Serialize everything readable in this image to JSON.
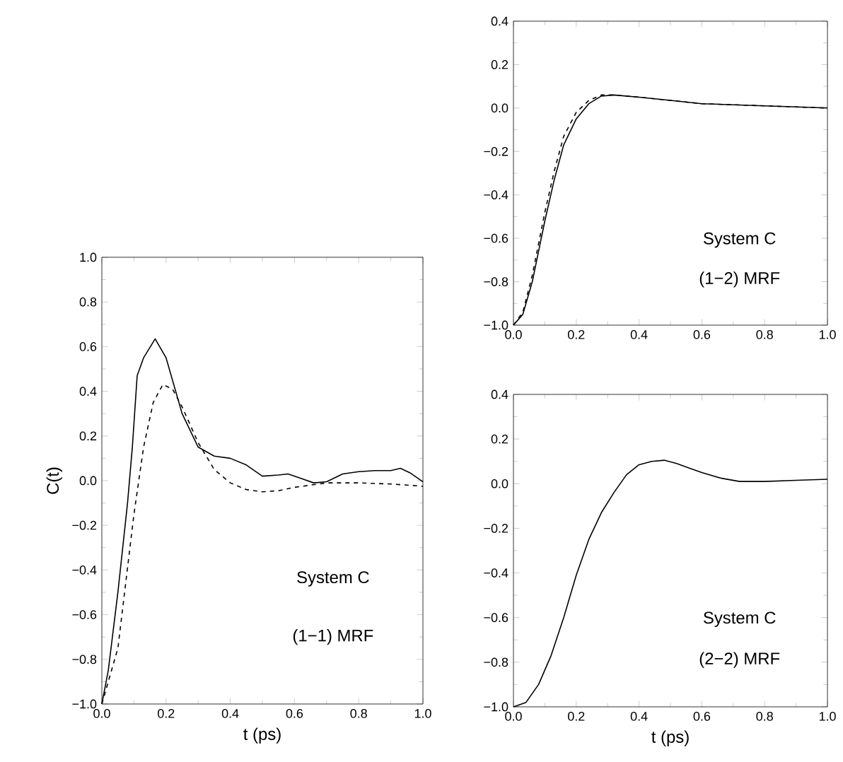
{
  "chart_data": [
    {
      "type": "line",
      "xlabel": "t (ps)",
      "ylabel": "C(t)",
      "annotations": [
        "System C",
        "(1−1)  MRF"
      ],
      "xlim": [
        0,
        1
      ],
      "ylim": [
        -1,
        1
      ],
      "xticks": [
        {
          "value": 0,
          "label": "0.0"
        },
        {
          "value": 0.2,
          "label": "0.2"
        },
        {
          "value": 0.4,
          "label": "0.4"
        },
        {
          "value": 0.6,
          "label": "0.6"
        },
        {
          "value": 0.8,
          "label": "0.8"
        },
        {
          "value": 1,
          "label": "1.0"
        }
      ],
      "yticks": [
        {
          "value": -1,
          "label": "−1.0"
        },
        {
          "value": -0.8,
          "label": "−0.8"
        },
        {
          "value": -0.6,
          "label": "−0.6"
        },
        {
          "value": -0.4,
          "label": "−0.4"
        },
        {
          "value": -0.2,
          "label": "−0.2"
        },
        {
          "value": 0,
          "label": "0.0"
        },
        {
          "value": 0.2,
          "label": "0.2"
        },
        {
          "value": 0.4,
          "label": "0.4"
        },
        {
          "value": 0.6,
          "label": "0.6"
        },
        {
          "value": 0.8,
          "label": "0.8"
        },
        {
          "value": 1,
          "label": "1.0"
        }
      ],
      "series": [
        {
          "color": "#000000",
          "line_style": "solid",
          "x": [
            0,
            0.02,
            0.05,
            0.08,
            0.095,
            0.11,
            0.13,
            0.166,
            0.2,
            0.25,
            0.3,
            0.35,
            0.4,
            0.45,
            0.5,
            0.55,
            0.58,
            0.62,
            0.66,
            0.7,
            0.75,
            0.8,
            0.85,
            0.9,
            0.93,
            0.96,
            1.0
          ],
          "values": [
            -1.0,
            -0.85,
            -0.5,
            -0.1,
            0.15,
            0.47,
            0.55,
            0.635,
            0.55,
            0.3,
            0.15,
            0.11,
            0.1,
            0.07,
            0.02,
            0.025,
            0.03,
            0.01,
            -0.01,
            -0.005,
            0.03,
            0.04,
            0.045,
            0.045,
            0.055,
            0.035,
            -0.005
          ]
        },
        {
          "color": "#000000",
          "line_style": "dashed",
          "x": [
            0,
            0.05,
            0.1,
            0.13,
            0.16,
            0.19,
            0.22,
            0.25,
            0.3,
            0.35,
            0.4,
            0.45,
            0.5,
            0.55,
            0.6,
            0.65,
            0.7,
            0.8,
            0.9,
            1.0
          ],
          "values": [
            -1.0,
            -0.75,
            -0.15,
            0.15,
            0.35,
            0.43,
            0.41,
            0.33,
            0.17,
            0.05,
            -0.01,
            -0.04,
            -0.05,
            -0.045,
            -0.03,
            -0.02,
            -0.01,
            -0.01,
            -0.015,
            -0.025
          ]
        }
      ]
    },
    {
      "type": "line",
      "annotations": [
        "System C",
        "(1−2)  MRF"
      ],
      "xlim": [
        0,
        1
      ],
      "ylim": [
        -1,
        0.4
      ],
      "xticks": [
        {
          "value": 0,
          "label": "0.0"
        },
        {
          "value": 0.2,
          "label": "0.2"
        },
        {
          "value": 0.4,
          "label": "0.4"
        },
        {
          "value": 0.6,
          "label": "0.6"
        },
        {
          "value": 0.8,
          "label": "0.8"
        },
        {
          "value": 1,
          "label": "1.0"
        }
      ],
      "yticks": [
        {
          "value": -1,
          "label": "−1.0"
        },
        {
          "value": -0.8,
          "label": "−0.8"
        },
        {
          "value": -0.6,
          "label": "−0.6"
        },
        {
          "value": -0.4,
          "label": "−0.4"
        },
        {
          "value": -0.2,
          "label": "−0.2"
        },
        {
          "value": 0,
          "label": "0.0"
        },
        {
          "value": 0.2,
          "label": "0.2"
        },
        {
          "value": 0.4,
          "label": "0.4"
        }
      ],
      "series": [
        {
          "color": "#000000",
          "line_style": "solid",
          "x": [
            0,
            0.03,
            0.06,
            0.1,
            0.13,
            0.16,
            0.2,
            0.24,
            0.28,
            0.32,
            0.4,
            0.5,
            0.6,
            0.7,
            0.8,
            0.9,
            1.0
          ],
          "values": [
            -1.0,
            -0.95,
            -0.8,
            -0.52,
            -0.33,
            -0.17,
            -0.05,
            0.02,
            0.055,
            0.06,
            0.05,
            0.035,
            0.02,
            0.015,
            0.01,
            0.005,
            0.0
          ]
        },
        {
          "color": "#000000",
          "line_style": "dashed",
          "x": [
            0,
            0.03,
            0.06,
            0.1,
            0.13,
            0.16,
            0.2,
            0.24,
            0.28,
            0.32,
            0.4,
            0.5,
            0.6,
            0.7,
            0.8,
            0.9,
            1.0
          ],
          "values": [
            -1.0,
            -0.94,
            -0.77,
            -0.48,
            -0.29,
            -0.13,
            -0.02,
            0.035,
            0.06,
            0.06,
            0.05,
            0.035,
            0.02,
            0.015,
            0.01,
            0.005,
            0.0
          ]
        }
      ]
    },
    {
      "type": "line",
      "xlabel": "t (ps)",
      "annotations": [
        "System C",
        "(2−2)  MRF"
      ],
      "xlim": [
        0,
        1
      ],
      "ylim": [
        -1,
        0.4
      ],
      "xticks": [
        {
          "value": 0,
          "label": "0.0"
        },
        {
          "value": 0.2,
          "label": "0.2"
        },
        {
          "value": 0.4,
          "label": "0.4"
        },
        {
          "value": 0.6,
          "label": "0.6"
        },
        {
          "value": 0.8,
          "label": "0.8"
        },
        {
          "value": 1,
          "label": "1.0"
        }
      ],
      "yticks": [
        {
          "value": -1,
          "label": "−1.0"
        },
        {
          "value": -0.8,
          "label": "−0.8"
        },
        {
          "value": -0.6,
          "label": "−0.6"
        },
        {
          "value": -0.4,
          "label": "−0.4"
        },
        {
          "value": -0.2,
          "label": "−0.2"
        },
        {
          "value": 0,
          "label": "0.0"
        },
        {
          "value": 0.2,
          "label": "0.2"
        },
        {
          "value": 0.4,
          "label": "0.4"
        }
      ],
      "series": [
        {
          "color": "#000000",
          "line_style": "solid",
          "x": [
            0,
            0.04,
            0.08,
            0.12,
            0.16,
            0.2,
            0.24,
            0.28,
            0.32,
            0.36,
            0.4,
            0.44,
            0.48,
            0.52,
            0.56,
            0.6,
            0.66,
            0.72,
            0.8,
            0.9,
            1.0
          ],
          "values": [
            -1.0,
            -0.98,
            -0.9,
            -0.77,
            -0.6,
            -0.41,
            -0.25,
            -0.13,
            -0.04,
            0.04,
            0.085,
            0.1,
            0.105,
            0.09,
            0.07,
            0.05,
            0.025,
            0.01,
            0.01,
            0.015,
            0.02
          ]
        }
      ]
    }
  ]
}
